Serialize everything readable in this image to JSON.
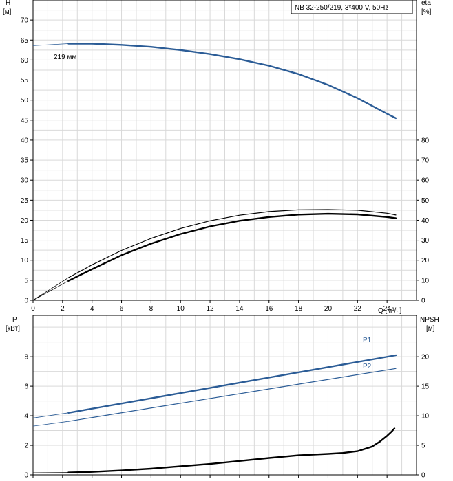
{
  "chart_data": [
    {
      "type": "line",
      "title": "NB 32-250/219, 3*400 V, 50Hz",
      "xlabel": "Q [м³/ч]",
      "x_unit": "Q [м³/ч]",
      "xlim": [
        0,
        26
      ],
      "x_ticks": [
        0,
        2,
        4,
        6,
        8,
        10,
        12,
        14,
        16,
        18,
        20,
        22,
        24
      ],
      "left_axis": {
        "label": "H",
        "unit": "[м]",
        "ylim": [
          0,
          75
        ],
        "ticks": [
          0,
          5,
          10,
          15,
          20,
          25,
          30,
          35,
          40,
          45,
          50,
          55,
          60,
          65,
          70
        ]
      },
      "right_axis": {
        "label": "eta",
        "unit": "[%]",
        "ylim": [
          0,
          150
        ],
        "ticks": [
          0,
          10,
          20,
          30,
          40,
          50,
          60,
          70,
          80
        ]
      },
      "grid": true,
      "series": [
        {
          "name": "219 мм",
          "axis": "left",
          "color": "#2b5c96",
          "x": [
            0,
            2.4,
            4,
            6,
            8,
            10,
            12,
            14,
            16,
            18,
            20,
            22,
            24,
            24.6
          ],
          "y": [
            63.6,
            64.1,
            64.1,
            63.8,
            63.3,
            62.5,
            61.5,
            60.2,
            58.6,
            56.5,
            53.8,
            50.5,
            46.6,
            45.5
          ]
        },
        {
          "axis": "right",
          "color": "#000000",
          "x": [
            0,
            2.4,
            4,
            6,
            8,
            10,
            12,
            14,
            16,
            18,
            20,
            22,
            24,
            24.6
          ],
          "y": [
            0,
            9.7,
            15.5,
            22.5,
            28.3,
            33.1,
            36.9,
            39.7,
            41.6,
            42.8,
            43.2,
            42.9,
            41.6,
            41.0
          ]
        },
        {
          "axis": "right",
          "color": "#000000",
          "x": [
            0,
            2.4,
            4,
            6,
            8,
            10,
            12,
            14,
            16,
            18,
            20,
            22,
            24,
            24.6
          ],
          "y": [
            0,
            11.3,
            17.7,
            24.9,
            30.9,
            35.9,
            39.7,
            42.5,
            44.3,
            45.2,
            45.3,
            45.0,
            43.5,
            42.6
          ]
        }
      ]
    },
    {
      "type": "line",
      "xlim": [
        0,
        26
      ],
      "x_ticks": [
        0,
        2,
        4,
        6,
        8,
        10,
        12,
        14,
        16,
        18,
        20,
        22,
        24
      ],
      "left_axis": {
        "label": "P",
        "unit": "[кВт]",
        "ylim": [
          0,
          10.8
        ],
        "ticks": [
          0,
          2,
          4,
          6,
          8
        ]
      },
      "right_axis": {
        "label": "NPSH",
        "unit": "[м]",
        "ylim": [
          0,
          27
        ],
        "ticks": [
          0,
          5,
          10,
          15,
          20
        ]
      },
      "grid": true,
      "series": [
        {
          "name": "P1",
          "axis": "left",
          "color": "#2b5c96",
          "x": [
            0,
            2.4,
            24.6
          ],
          "y": [
            3.85,
            4.2,
            8.1
          ]
        },
        {
          "name": "P2",
          "axis": "left",
          "color": "#2b5c96",
          "x": [
            0,
            2.4,
            24.6
          ],
          "y": [
            3.3,
            3.62,
            7.2
          ]
        },
        {
          "axis": "right",
          "color": "#000000",
          "x": [
            0,
            2.4,
            4,
            6,
            8,
            10,
            12,
            14,
            16,
            18,
            20,
            21,
            22,
            23,
            23.5,
            24,
            24.3,
            24.5
          ],
          "y": [
            0.35,
            0.4,
            0.5,
            0.75,
            1.05,
            1.45,
            1.85,
            2.35,
            2.85,
            3.3,
            3.55,
            3.7,
            4.0,
            4.8,
            5.6,
            6.6,
            7.3,
            7.85
          ]
        }
      ]
    }
  ],
  "series_labels": {
    "diameter": "219 мм",
    "p1": "P1",
    "p2": "P2"
  }
}
